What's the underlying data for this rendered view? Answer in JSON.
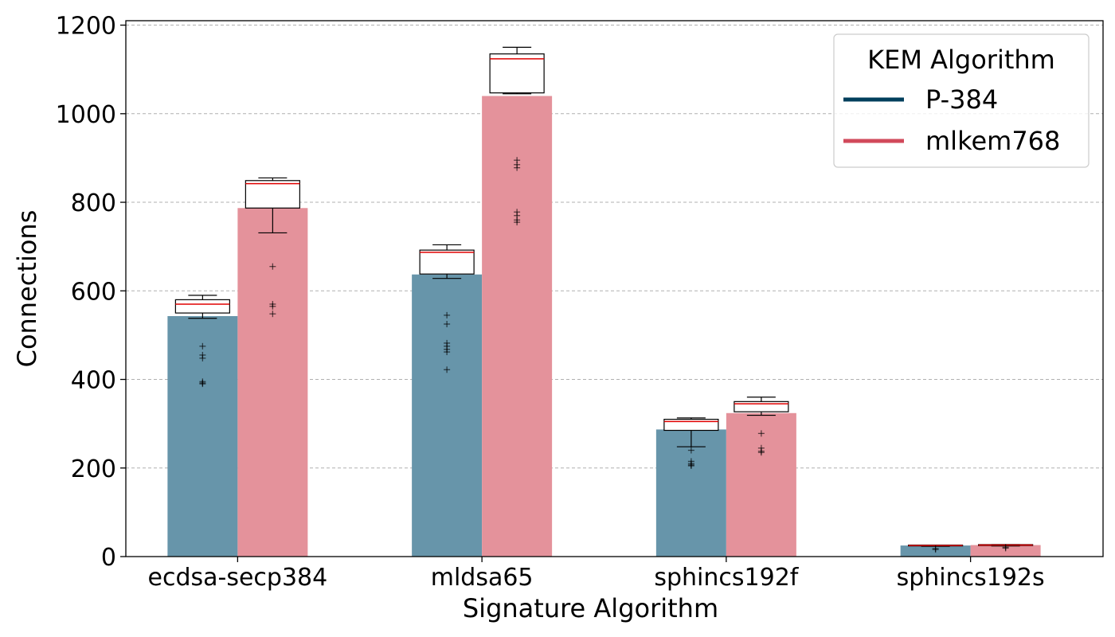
{
  "chart_data": {
    "type": "bar",
    "title": "",
    "xlabel": "Signature Algorithm",
    "ylabel": "Connections",
    "categories": [
      "ecdsa-secp384",
      "mldsa65",
      "sphincs192f",
      "sphincs192s"
    ],
    "ylim": [
      0,
      1210
    ],
    "yticks": [
      0,
      200,
      400,
      600,
      800,
      1000,
      1200
    ],
    "grid": "horizontal-dashed",
    "legend": {
      "title": "KEM Algorithm",
      "placement": "top-right"
    },
    "series": [
      {
        "name": "P-384",
        "color": "#6795aa",
        "legend_color": "#003f5c",
        "values": [
          543,
          637,
          287,
          25
        ],
        "boxes": [
          {
            "q1": 550,
            "median": 570,
            "q3": 580,
            "whisker_low": 538,
            "whisker_high": 590
          },
          {
            "q1": 638,
            "median": 687,
            "q3": 692,
            "whisker_low": 628,
            "whisker_high": 704
          },
          {
            "q1": 285,
            "median": 305,
            "q3": 310,
            "whisker_low": 248,
            "whisker_high": 313
          },
          {
            "q1": 24,
            "median": 25,
            "q3": 26,
            "whisker_low": 23,
            "whisker_high": 26
          }
        ],
        "outliers": [
          [
            475,
            455,
            448,
            395,
            392,
            390
          ],
          [
            545,
            525,
            482,
            475,
            468,
            462,
            422
          ],
          [
            240,
            215,
            210,
            207,
            205
          ],
          [
            18,
            16
          ]
        ]
      },
      {
        "name": "mlkem768",
        "color": "#e4929b",
        "legend_color": "#d1495b",
        "values": [
          787,
          1040,
          324,
          26
        ],
        "boxes": [
          {
            "q1": 787,
            "median": 842,
            "q3": 849,
            "whisker_low": 731,
            "whisker_high": 855
          },
          {
            "q1": 1047,
            "median": 1124,
            "q3": 1135,
            "whisker_low": 1045,
            "whisker_high": 1150
          },
          {
            "q1": 327,
            "median": 345,
            "q3": 350,
            "whisker_low": 319,
            "whisker_high": 360
          },
          {
            "q1": 25,
            "median": 26,
            "q3": 27,
            "whisker_low": 24,
            "whisker_high": 27
          }
        ],
        "outliers": [
          [
            655,
            570,
            565,
            548
          ],
          [
            895,
            885,
            878,
            778,
            770,
            760,
            755
          ],
          [
            278,
            245,
            238,
            235
          ],
          [
            21,
            19
          ]
        ]
      }
    ]
  }
}
